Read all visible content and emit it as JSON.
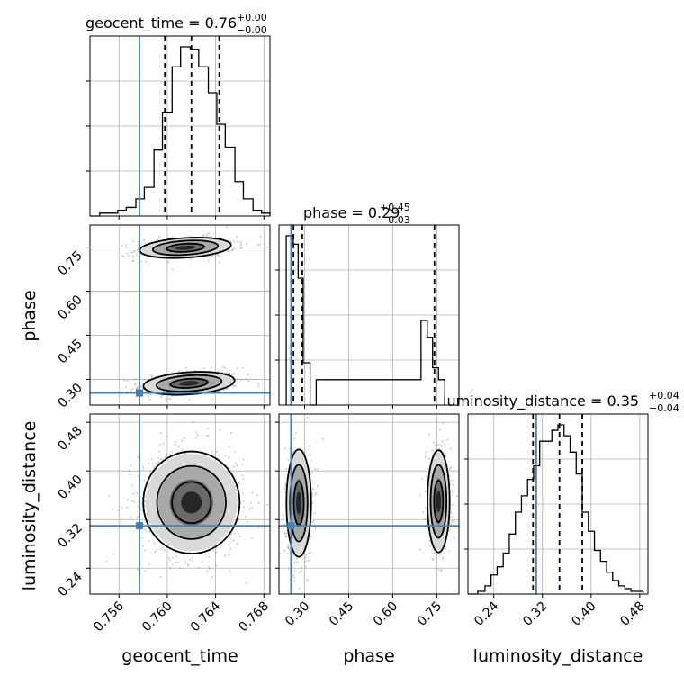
{
  "chart_data": {
    "type": "corner",
    "parameters": [
      "geocent_time",
      "phase",
      "luminosity_distance"
    ],
    "truths": {
      "geocent_time": 0.7577,
      "phase": 0.2535,
      "luminosity_distance": 0.3098
    },
    "titles": {
      "geocent_time": {
        "text": "geocent_time = 0.76",
        "plus": "+0.00",
        "minus": "−0.00"
      },
      "phase": {
        "text": "phase = 0.29",
        "plus": "+0.45",
        "minus": "−0.03"
      },
      "luminosity_distance": {
        "text": "luminosity_distance = 0.35",
        "plus": "+0.04",
        "minus": "−0.04"
      }
    },
    "axes": {
      "geocent_time": {
        "range": [
          0.7536,
          0.7685
        ],
        "ticks": [
          0.756,
          0.76,
          0.764,
          0.768
        ],
        "tick_labels": [
          "0.756",
          "0.760",
          "0.764",
          "0.768"
        ],
        "quantiles": [
          0.7598,
          0.762,
          0.7643
        ]
      },
      "phase": {
        "range": [
          0.2125,
          0.8255
        ],
        "ticks": [
          0.3,
          0.45,
          0.6,
          0.75
        ],
        "tick_labels": [
          "0.30",
          "0.45",
          "0.60",
          "0.75"
        ],
        "quantiles": [
          0.262,
          0.292,
          0.742
        ]
      },
      "luminosity_distance": {
        "range": [
          0.1975,
          0.4935
        ],
        "ticks": [
          0.24,
          0.32,
          0.4,
          0.48
        ],
        "tick_labels": [
          "0.24",
          "0.32",
          "0.40",
          "0.48"
        ],
        "quantiles": [
          0.3045,
          0.348,
          0.3855
        ]
      }
    },
    "histograms": {
      "geocent_time": {
        "bins": [
          0.7536,
          0.7544,
          0.7551,
          0.7559,
          0.7566,
          0.7574,
          0.7581,
          0.7589,
          0.7596,
          0.7604,
          0.7611,
          0.7619,
          0.7626,
          0.7634,
          0.7641,
          0.7648,
          0.7656,
          0.7663,
          0.7671,
          0.7678,
          0.7685
        ],
        "values": [
          0,
          1,
          1,
          2,
          3,
          6,
          10,
          23,
          36,
          52,
          59,
          58,
          52,
          43,
          32,
          24,
          12,
          6,
          2,
          1
        ]
      },
      "phase": {
        "bins": [
          0.2372,
          0.2611,
          0.2779,
          0.295,
          0.3186,
          0.3394,
          0.6963,
          0.7176,
          0.7357,
          0.7558,
          0.7774
        ],
        "values": [
          100,
          95,
          75,
          25,
          0,
          15,
          50,
          40,
          22,
          15
        ]
      },
      "luminosity_distance": {
        "bins": [
          0.1975,
          0.2135,
          0.2255,
          0.2355,
          0.2455,
          0.2555,
          0.2655,
          0.2755,
          0.2855,
          0.2955,
          0.3055,
          0.3155,
          0.3255,
          0.3355,
          0.3455,
          0.3555,
          0.3655,
          0.3755,
          0.3855,
          0.3955,
          0.4055,
          0.4155,
          0.4255,
          0.4355,
          0.4455,
          0.4555,
          0.4655,
          0.4855
        ],
        "values": [
          0,
          1,
          3,
          7,
          10,
          15,
          22,
          30,
          36,
          42,
          47,
          56,
          56,
          60,
          62,
          58,
          52,
          44,
          30,
          23,
          16,
          12,
          8,
          5,
          3,
          2,
          1
        ]
      }
    },
    "blobs": {
      "phase_vs_geocent_time": [
        {
          "cx": 0.7618,
          "cy": 0.2865,
          "sx": 0.0018,
          "sy": 0.018,
          "tilt": 0.35,
          "n": 520
        },
        {
          "cx": 0.7615,
          "cy": 0.748,
          "sx": 0.0018,
          "sy": 0.016,
          "tilt": 0.35,
          "n": 380
        }
      ],
      "luminosity_distance_vs_geocent_time": [
        {
          "cx": 0.762,
          "cy": 0.348,
          "sx": 0.0019,
          "sy": 0.04,
          "tilt": 0,
          "n": 900
        }
      ],
      "luminosity_distance_vs_phase": [
        {
          "cx": 0.28,
          "cy": 0.347,
          "sx": 0.02,
          "sy": 0.042,
          "tilt": 0,
          "n": 520
        },
        {
          "cx": 0.756,
          "cy": 0.35,
          "sx": 0.018,
          "sy": 0.04,
          "tilt": 0,
          "n": 380
        }
      ]
    },
    "grid": true,
    "colors": {
      "truth": "#4682b4",
      "hist": "#000000",
      "points": "#7f7f7f"
    }
  }
}
